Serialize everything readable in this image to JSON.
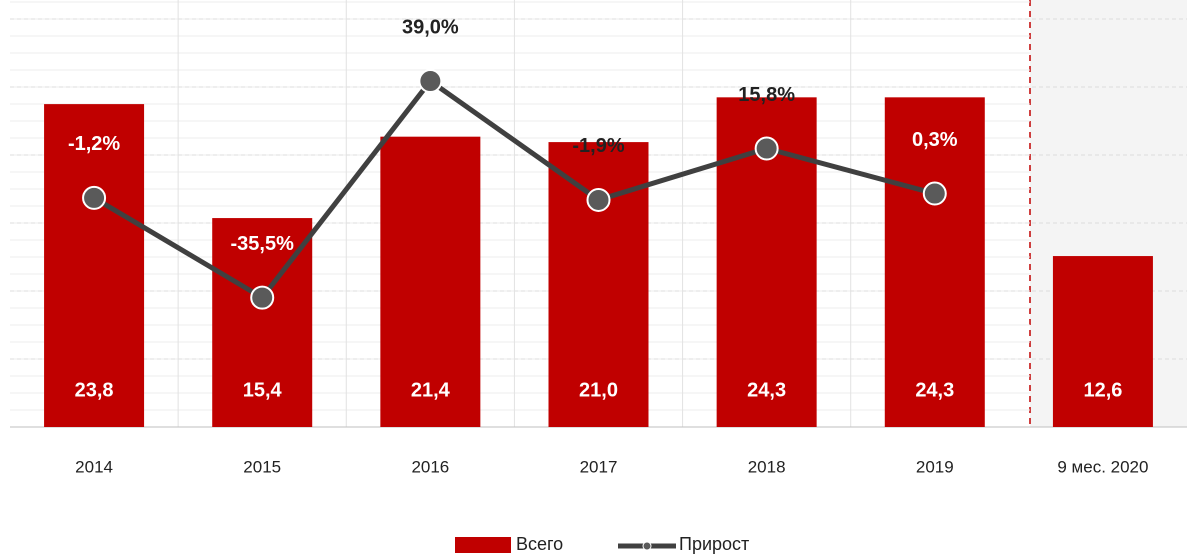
{
  "chart_data": {
    "type": "bar+line",
    "categories": [
      "2014",
      "2015",
      "2016",
      "2017",
      "2018",
      "2019",
      "9 мес. 2020"
    ],
    "series": [
      {
        "name": "Всего",
        "type": "bar",
        "color": "#c00000",
        "values": [
          23.8,
          15.4,
          21.4,
          21.0,
          24.3,
          24.3,
          12.6
        ],
        "value_labels": [
          "23,8",
          "15,4",
          "21,4",
          "21,0",
          "24,3",
          "24,3",
          "12,6"
        ]
      },
      {
        "name": "Прирост",
        "type": "line",
        "axis": "y2",
        "color": "#404040",
        "values": [
          -1.2,
          -35.5,
          39.0,
          -1.9,
          15.8,
          0.3,
          null
        ],
        "value_labels": [
          "-1,2%",
          "-35,5%",
          "39,0%",
          "-1,9%",
          "15,8%",
          "0,3%",
          null
        ]
      }
    ],
    "ylim": [
      0,
      30
    ],
    "y2lim": [
      -80,
      60
    ],
    "legend": "bottom"
  }
}
